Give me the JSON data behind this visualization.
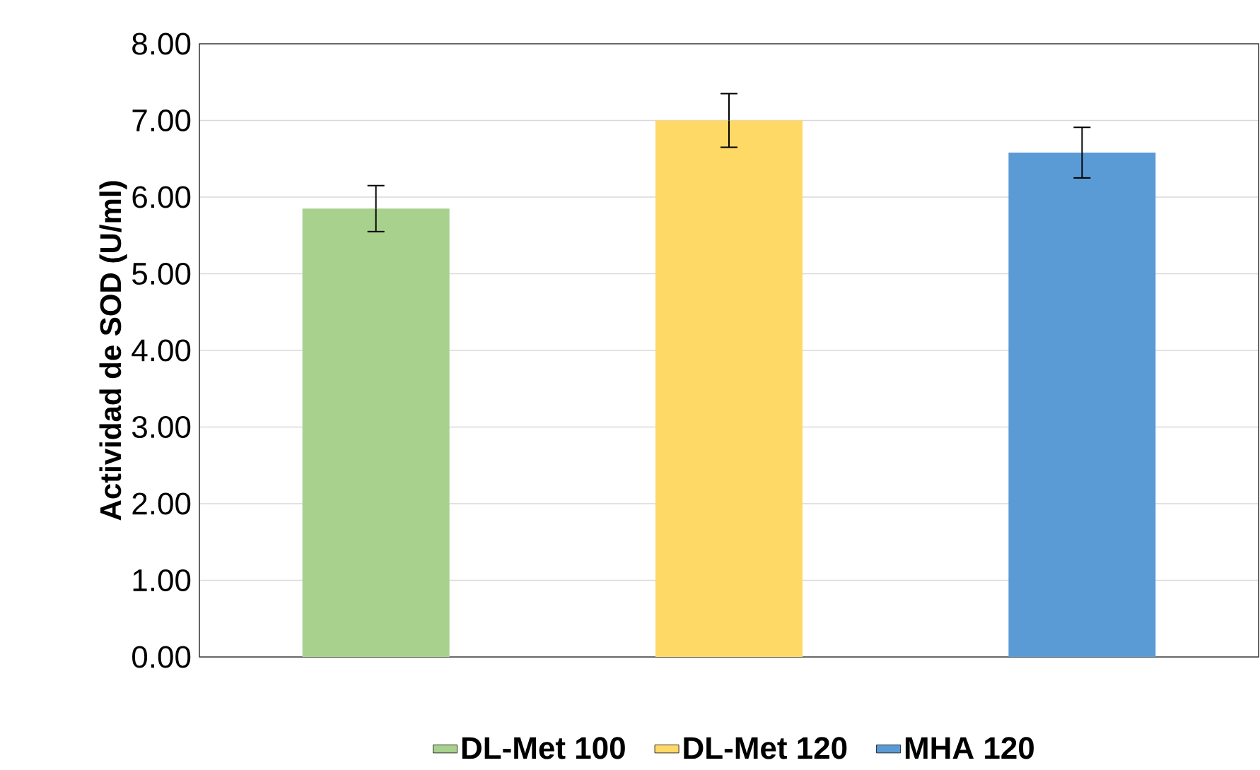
{
  "chart_data": {
    "type": "bar",
    "ylabel": "Actividad de SOD (U/ml)",
    "categories": [
      null,
      null,
      null
    ],
    "series": [
      {
        "name": "DL-Met 100",
        "color": "#a9d18e",
        "values": [
          5.85,
          null,
          null
        ],
        "errors": [
          0.3,
          null,
          null
        ]
      },
      {
        "name": "DL-Met 120",
        "color": "#ffd966",
        "values": [
          null,
          7.0,
          null
        ],
        "errors": [
          null,
          0.35,
          null
        ]
      },
      {
        "name": "MHA 120",
        "color": "#5b9bd5",
        "values": [
          null,
          null,
          6.58
        ],
        "errors": [
          null,
          null,
          0.33
        ]
      }
    ],
    "ylim": [
      0,
      8
    ],
    "yticks": [
      {
        "value": 0,
        "label": "0.00"
      },
      {
        "value": 1,
        "label": "1.00"
      },
      {
        "value": 2,
        "label": "2.00"
      },
      {
        "value": 3,
        "label": "3.00"
      },
      {
        "value": 4,
        "label": "4.00"
      },
      {
        "value": 5,
        "label": "5.00"
      },
      {
        "value": 6,
        "label": "6.00"
      },
      {
        "value": 7,
        "label": "7.00"
      },
      {
        "value": 8,
        "label": "8.00"
      }
    ],
    "grid": "y",
    "legend": "bottom"
  }
}
